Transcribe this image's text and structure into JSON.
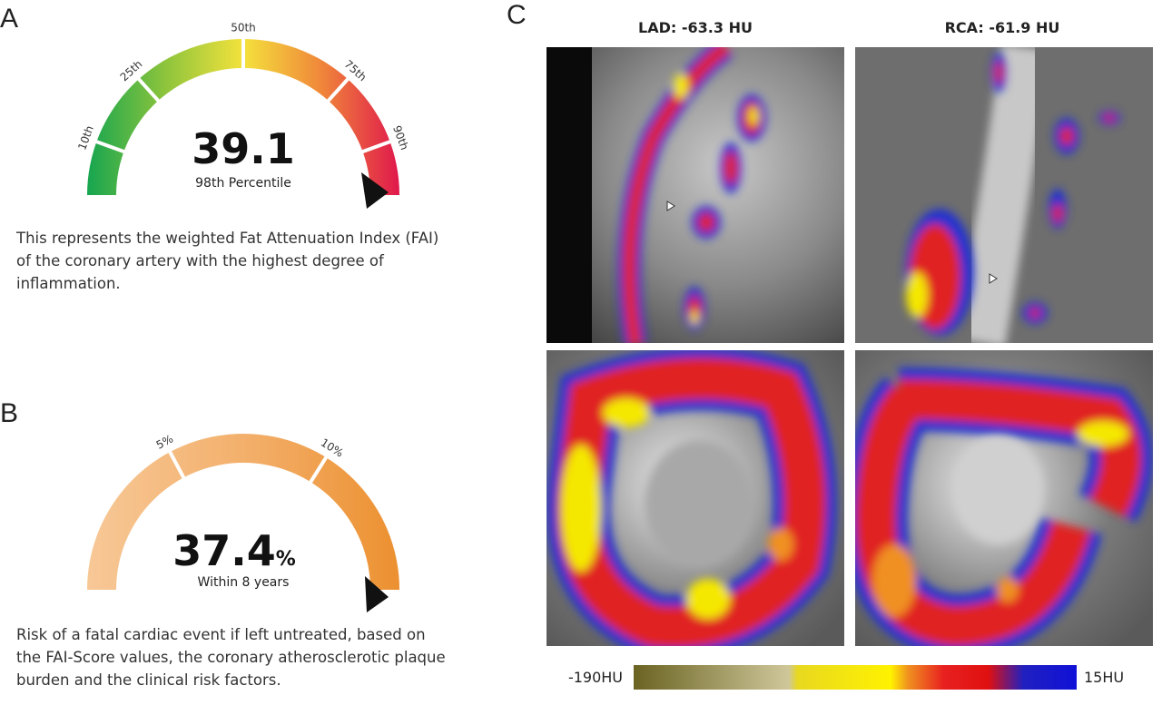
{
  "panels": {
    "a": {
      "label": "A",
      "ticks": [
        "10th",
        "25th",
        "50th",
        "75th",
        "90th"
      ],
      "value": "39.1",
      "caption": "98th Percentile",
      "description": [
        "This represents the weighted Fat Attenuation Index (FAI)",
        "of the coronary artery with the highest degree of",
        "inflammation."
      ]
    },
    "b": {
      "label": "B",
      "ticks": [
        "5%",
        "10%"
      ],
      "value": "37.4",
      "unit": "%",
      "caption": "Within 8 years",
      "description": [
        "Risk of a fatal cardiac event if left untreated, based on",
        "the FAI-Score values, the coronary atherosclerotic plaque",
        "burden and the clinical risk factors."
      ]
    },
    "c": {
      "label": "C",
      "titles": [
        "LAD: -63.3 HU",
        "RCA: -61.9 HU"
      ],
      "colorbar": {
        "min_label": "-190HU",
        "max_label": "15HU"
      }
    }
  }
}
